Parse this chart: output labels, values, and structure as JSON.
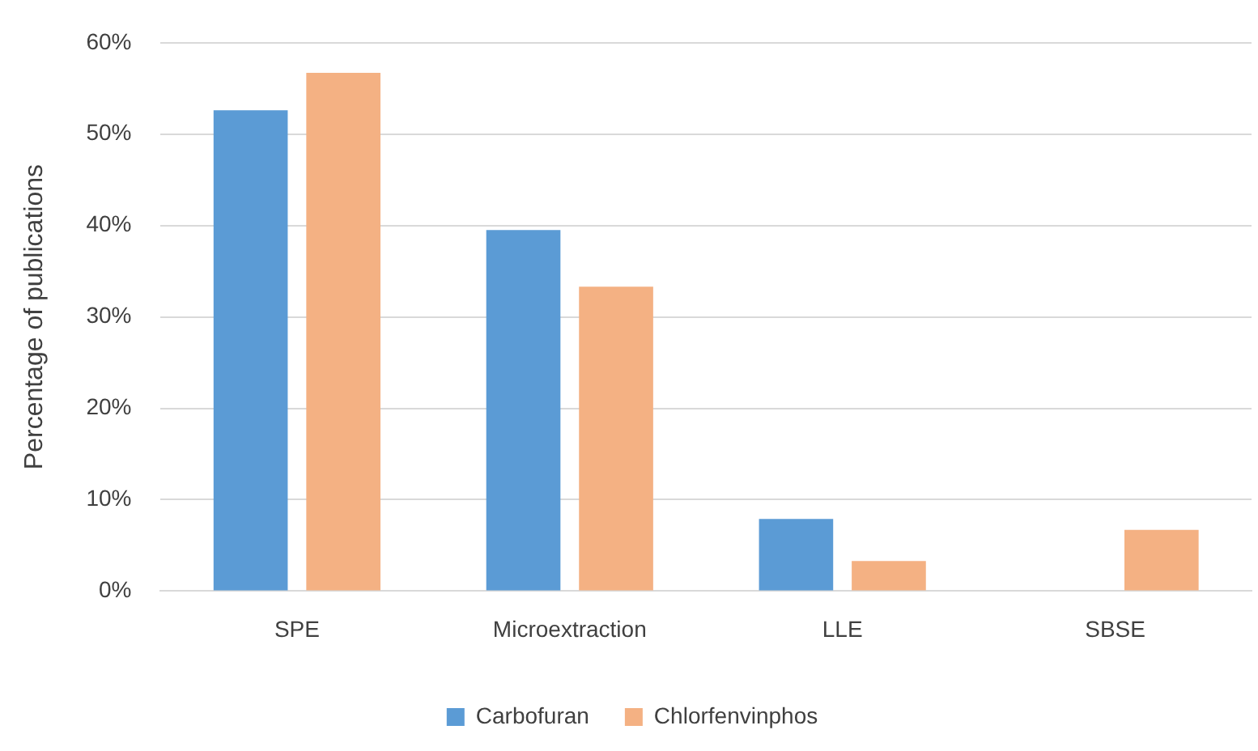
{
  "chart_data": {
    "type": "bar",
    "ylabel": "Percentage of publications",
    "categories": [
      "SPE",
      "Microextraction",
      "LLE",
      "SBSE"
    ],
    "series": [
      {
        "name": "Carbofuran",
        "color": "#5b9bd5",
        "values": [
          52.6,
          39.5,
          7.9,
          0
        ]
      },
      {
        "name": "Chlorfenvinphos",
        "color": "#f4b183",
        "values": [
          56.7,
          33.3,
          3.3,
          6.7
        ]
      }
    ],
    "ylim": [
      0,
      60
    ],
    "yticks": [
      {
        "value": 0,
        "label": "0%"
      },
      {
        "value": 10,
        "label": "10%"
      },
      {
        "value": 20,
        "label": "20%"
      },
      {
        "value": 30,
        "label": "30%"
      },
      {
        "value": 40,
        "label": "40%"
      },
      {
        "value": 50,
        "label": "50%"
      },
      {
        "value": 60,
        "label": "60%"
      }
    ],
    "grid": "y",
    "legend": "bottom"
  }
}
